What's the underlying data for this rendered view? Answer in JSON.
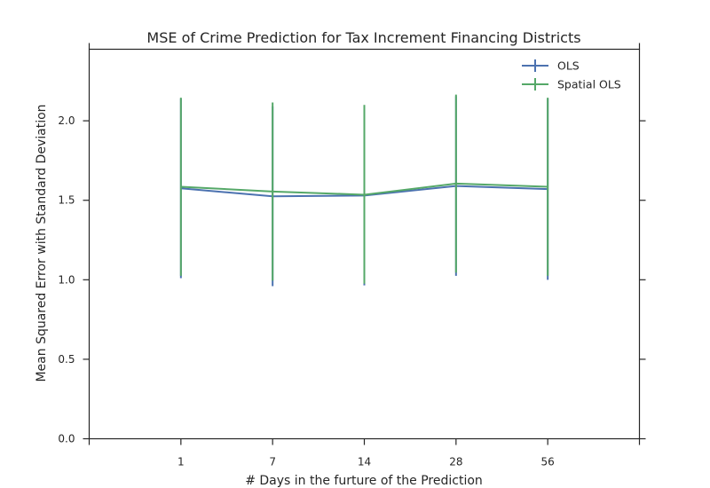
{
  "chart_data": {
    "type": "line",
    "title": "MSE of Crime Prediction for Tax Increment Financing Districts",
    "xlabel": "# Days in the furture of the Prediction",
    "ylabel": "Mean Squared Error with Standard Deviation",
    "categories": [
      "1",
      "7",
      "14",
      "28",
      "56"
    ],
    "ylim": [
      0,
      2.45
    ],
    "yticks": [
      "0.0",
      "0.5",
      "1.0",
      "1.5",
      "2.0"
    ],
    "grid": false,
    "legend_position": "top-right",
    "error_bars": true,
    "series": [
      {
        "name": "OLS",
        "color": "#4c72b0",
        "values": [
          1.575,
          1.525,
          1.53,
          1.59,
          1.57
        ],
        "error_low": [
          1.01,
          0.96,
          0.965,
          1.025,
          1.0
        ],
        "error_high": [
          2.14,
          2.09,
          2.095,
          2.155,
          2.14
        ]
      },
      {
        "name": "Spatial OLS",
        "color": "#55a868",
        "values": [
          1.585,
          1.555,
          1.535,
          1.605,
          1.585
        ],
        "error_low": [
          1.025,
          0.995,
          0.975,
          1.045,
          1.025
        ],
        "error_high": [
          2.145,
          2.115,
          2.1,
          2.165,
          2.145
        ]
      }
    ]
  }
}
